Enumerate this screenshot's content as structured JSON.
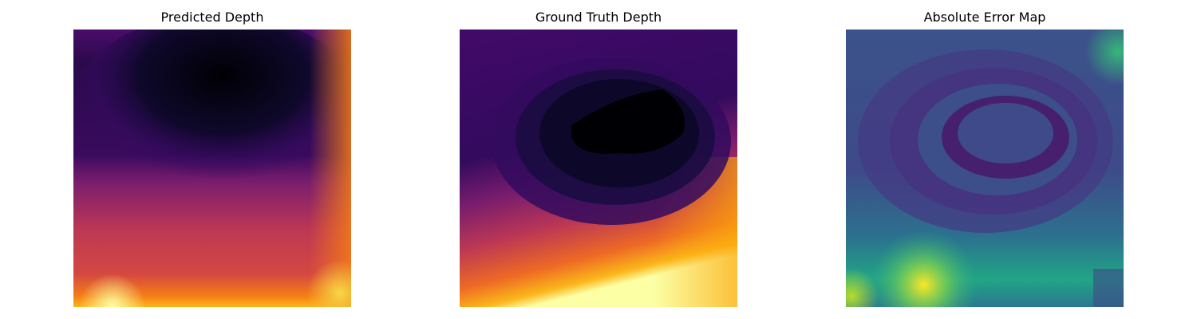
{
  "panels": [
    {
      "title": "Predicted Depth",
      "colormap": "inferno"
    },
    {
      "title": "Ground Truth Depth",
      "colormap": "inferno"
    },
    {
      "title": "Absolute Error Map",
      "colormap": "viridis"
    }
  ]
}
